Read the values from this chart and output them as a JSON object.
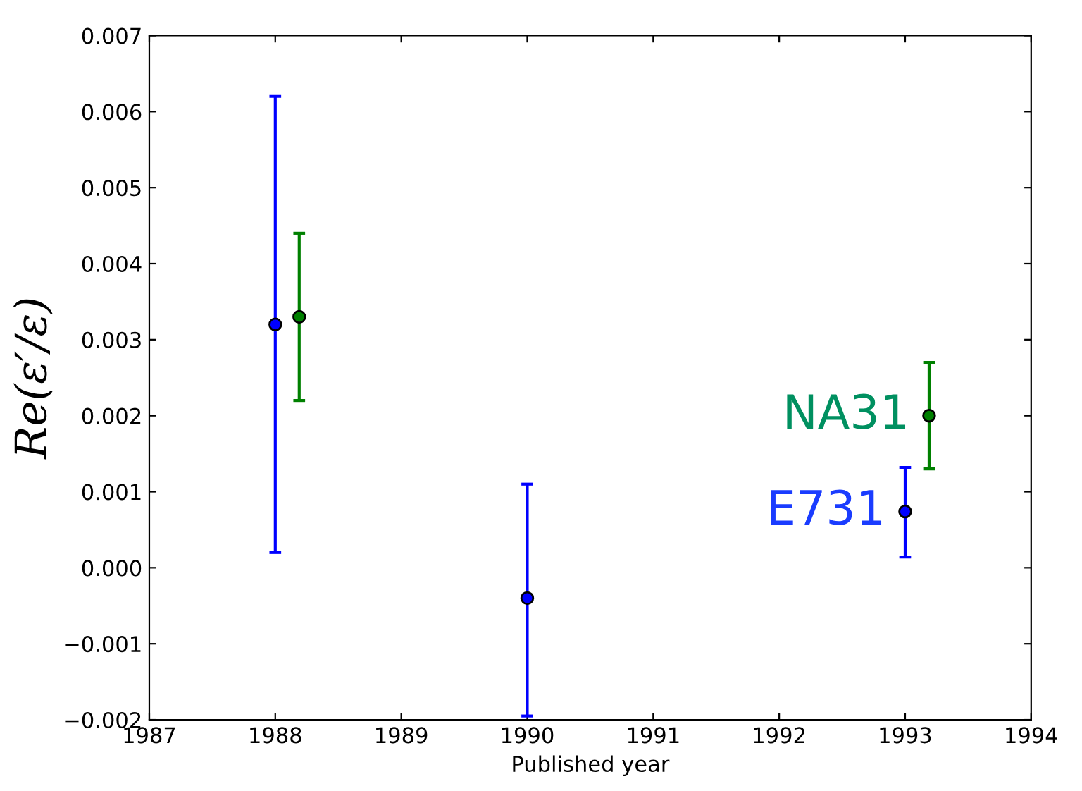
{
  "chart_data": {
    "type": "scatter",
    "xlabel": "Published year",
    "ylabel": "Re(ε′/ε)",
    "series": [
      {
        "name": "E731",
        "color": "#0000ff",
        "x": [
          1988,
          1990,
          1993
        ],
        "values": [
          0.0032,
          -0.0004,
          0.00074
        ],
        "errors": [
          [
            0.0002,
            0.0062
          ],
          [
            -0.00195,
            0.0011
          ],
          [
            0.00014,
            0.00132
          ]
        ]
      },
      {
        "name": "NA31",
        "color": "#008000",
        "x": [
          1988.19,
          1993.19
        ],
        "values": [
          0.0033,
          0.002
        ],
        "errors": [
          [
            0.0022,
            0.0044
          ],
          [
            0.0013,
            0.0027
          ]
        ]
      }
    ],
    "marker": "circle",
    "grid": false,
    "legend": false,
    "xlim": [
      1987,
      1994
    ],
    "xticks": [
      1987,
      1988,
      1989,
      1990,
      1991,
      1992,
      1993,
      1994
    ],
    "ylim": [
      -0.002,
      0.007
    ],
    "yticks": [
      {
        "value": -0.002,
        "label": "−0.002"
      },
      {
        "value": -0.001,
        "label": "−0.001"
      },
      {
        "value": 0,
        "label": "0.000"
      },
      0.001,
      0.002,
      0.003,
      0.004,
      0.005,
      0.006,
      0.007
    ]
  }
}
